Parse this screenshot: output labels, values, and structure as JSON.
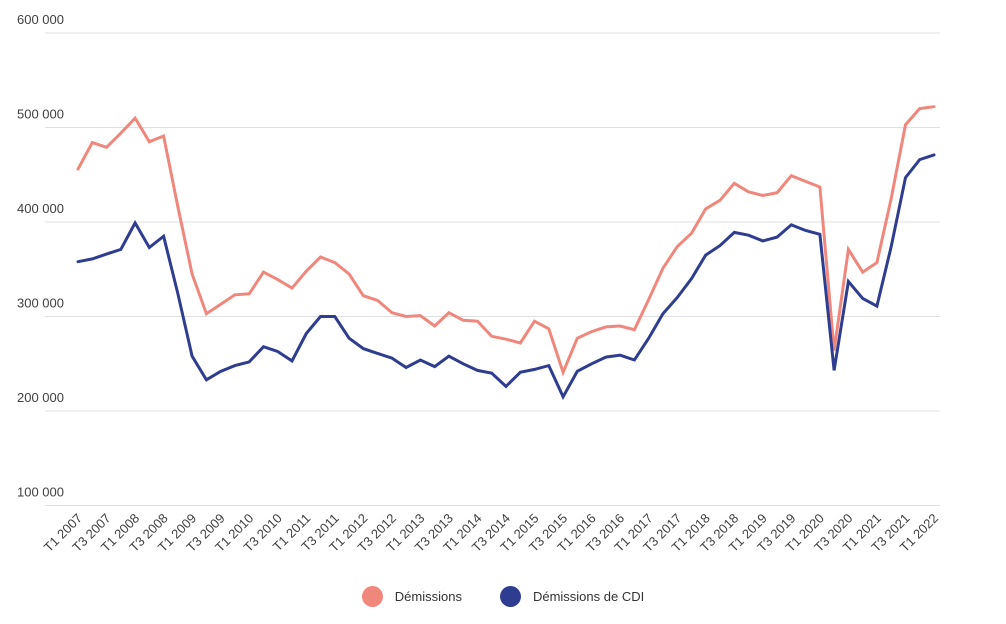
{
  "chart_data": {
    "type": "line",
    "title": "",
    "xlabel": "",
    "ylabel": "",
    "grid": true,
    "legend_position": "bottom",
    "y_axis": {
      "min": 100000,
      "max": 600000,
      "tick_interval": 100000,
      "ticks": [
        600000,
        500000,
        400000,
        300000,
        200000,
        100000
      ],
      "tick_labels": [
        "600 000",
        "500 000",
        "400 000",
        "300 000",
        "200 000",
        "100 000"
      ]
    },
    "x_tick_labels": [
      "T1 2007",
      "T3 2007",
      "T1 2008",
      "T3 2008",
      "T1 2009",
      "T3 2009",
      "T1 2010",
      "T3 2010",
      "T1 2011",
      "T3 2011",
      "T1 2012",
      "T3 2012",
      "T1 2013",
      "T3 2013",
      "T1 2014",
      "T3 2014",
      "T1 2015",
      "T3 2015",
      "T1 2016",
      "T3 2016",
      "T1 2017",
      "T3 2017",
      "T1 2018",
      "T3 2018",
      "T1 2019",
      "T3 2019",
      "T1 2020",
      "T3 2020",
      "T1 2021",
      "T3 2021",
      "T1 2022"
    ],
    "categories": [
      "T1 2007",
      "T2 2007",
      "T3 2007",
      "T4 2007",
      "T1 2008",
      "T2 2008",
      "T3 2008",
      "T4 2008",
      "T1 2009",
      "T2 2009",
      "T3 2009",
      "T4 2009",
      "T1 2010",
      "T2 2010",
      "T3 2010",
      "T4 2010",
      "T1 2011",
      "T2 2011",
      "T3 2011",
      "T4 2011",
      "T1 2012",
      "T2 2012",
      "T3 2012",
      "T4 2012",
      "T1 2013",
      "T2 2013",
      "T3 2013",
      "T4 2013",
      "T1 2014",
      "T2 2014",
      "T3 2014",
      "T4 2014",
      "T1 2015",
      "T2 2015",
      "T3 2015",
      "T4 2015",
      "T1 2016",
      "T2 2016",
      "T3 2016",
      "T4 2016",
      "T1 2017",
      "T2 2017",
      "T3 2017",
      "T4 2017",
      "T1 2018",
      "T2 2018",
      "T3 2018",
      "T4 2018",
      "T1 2019",
      "T2 2019",
      "T3 2019",
      "T4 2019",
      "T1 2020",
      "T2 2020",
      "T3 2020",
      "T4 2020",
      "T1 2021",
      "T2 2021",
      "T3 2021",
      "T4 2021",
      "T1 2022"
    ],
    "series": [
      {
        "name": "Démissions",
        "color": "#f0877c",
        "values": [
          456000,
          484000,
          479000,
          494000,
          510000,
          485000,
          491000,
          416000,
          345000,
          303000,
          313000,
          323000,
          324000,
          347000,
          339000,
          330000,
          348000,
          363000,
          357000,
          345000,
          322000,
          317000,
          304000,
          300000,
          301000,
          290000,
          304000,
          296000,
          295000,
          279000,
          276000,
          272000,
          295000,
          287000,
          241000,
          277000,
          284000,
          289000,
          290000,
          286000,
          318000,
          351000,
          374000,
          388000,
          414000,
          423000,
          441000,
          432000,
          428000,
          431000,
          449000,
          443000,
          437000,
          264000,
          371000,
          347000,
          357000,
          425000,
          503000,
          520000,
          522000
        ]
      },
      {
        "name": "Démissions de CDI",
        "color": "#2e3d8f",
        "values": [
          358000,
          361000,
          366000,
          371000,
          399000,
          373000,
          385000,
          324000,
          258000,
          233000,
          242000,
          248000,
          252000,
          268000,
          263000,
          253000,
          282000,
          300000,
          300000,
          277000,
          266000,
          261000,
          256000,
          246000,
          254000,
          247000,
          258000,
          250000,
          243000,
          240000,
          226000,
          241000,
          244000,
          248000,
          215000,
          242000,
          250000,
          257000,
          259000,
          254000,
          277000,
          303000,
          320000,
          340000,
          365000,
          375000,
          389000,
          386000,
          380000,
          384000,
          397000,
          391000,
          387000,
          243000,
          337000,
          319000,
          311000,
          374000,
          447000,
          466000,
          471000
        ]
      }
    ]
  },
  "legend": {
    "items": [
      {
        "label": "Démissions",
        "color": "#f0877c"
      },
      {
        "label": "Démissions de CDI",
        "color": "#2e3d8f"
      }
    ]
  }
}
